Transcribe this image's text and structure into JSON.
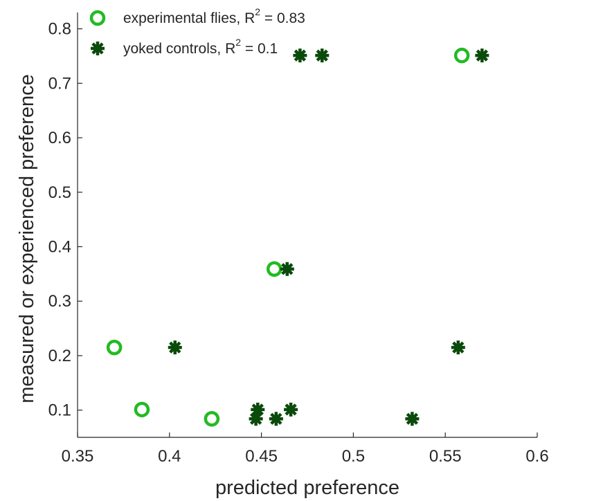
{
  "chart_data": {
    "type": "scatter",
    "xlabel": "predicted preference",
    "ylabel": "measured or experienced preference",
    "xlim": [
      0.35,
      0.6
    ],
    "ylim": [
      0.05,
      0.83
    ],
    "xticks": [
      "0.35",
      "0.4",
      "0.45",
      "0.5",
      "0.55",
      "0.6"
    ],
    "yticks": [
      "0.1",
      "0.2",
      "0.3",
      "0.4",
      "0.5",
      "0.6",
      "0.7",
      "0.8"
    ],
    "grid": false,
    "legend_position": "top-left",
    "series": [
      {
        "name": "experimental flies, R",
        "r2_value": " = 0.83",
        "marker": "circle",
        "color": "#22bb22",
        "points": [
          {
            "x": 0.37,
            "y": 0.215
          },
          {
            "x": 0.385,
            "y": 0.101
          },
          {
            "x": 0.423,
            "y": 0.084
          },
          {
            "x": 0.457,
            "y": 0.359
          },
          {
            "x": 0.559,
            "y": 0.751
          }
        ]
      },
      {
        "name": "yoked controls, R",
        "r2_value": " = 0.1",
        "marker": "asterisk",
        "color": "#0a4a0a",
        "points": [
          {
            "x": 0.403,
            "y": 0.215
          },
          {
            "x": 0.447,
            "y": 0.084
          },
          {
            "x": 0.448,
            "y": 0.101
          },
          {
            "x": 0.458,
            "y": 0.084
          },
          {
            "x": 0.464,
            "y": 0.359
          },
          {
            "x": 0.466,
            "y": 0.101
          },
          {
            "x": 0.471,
            "y": 0.751
          },
          {
            "x": 0.483,
            "y": 0.751
          },
          {
            "x": 0.532,
            "y": 0.084
          },
          {
            "x": 0.557,
            "y": 0.215
          },
          {
            "x": 0.57,
            "y": 0.751
          }
        ]
      }
    ],
    "r2_superscript": "2"
  }
}
